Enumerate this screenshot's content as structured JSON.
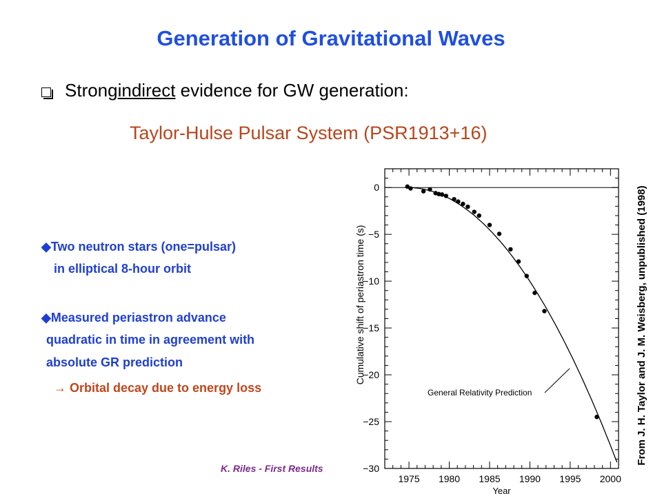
{
  "slide": {
    "title": "Generation of Gravitational Waves",
    "bullet_pre": "Strong ",
    "bullet_underlined": "indirect",
    "bullet_post": " evidence for GW generation:",
    "subtitle": "Taylor-Hulse Pulsar System (PSR1913+16)",
    "points": [
      "◆Two neutron stars (one=pulsar)",
      "in elliptical 8-hour orbit",
      "◆Measured periastron advance",
      "quadratic in time in agreement with",
      "absolute GR prediction",
      "→ Orbital decay due to energy loss"
    ],
    "footer": "K. Riles - First Results"
  },
  "chart_data": {
    "type": "scatter",
    "xlabel": "Year",
    "ylabel": "Cumulative shift of periastron time (s)",
    "xlim": [
      1972,
      2001
    ],
    "ylim": [
      -30,
      2
    ],
    "xticks": [
      1975,
      1980,
      1985,
      1990,
      1995,
      2000
    ],
    "xtick_labels": [
      "1975",
      "1980",
      "1985",
      "1990",
      "1995",
      "2000"
    ],
    "yticks": [
      0,
      -5,
      -10,
      -15,
      -20,
      -25,
      -30
    ],
    "ytick_labels": [
      "0",
      "−5",
      "−10",
      "−15",
      "−20",
      "−25",
      "−30"
    ],
    "grid": false,
    "points": [
      {
        "x": 1974.8,
        "y": 0.1
      },
      {
        "x": 1975.2,
        "y": -0.1
      },
      {
        "x": 1976.8,
        "y": -0.4
      },
      {
        "x": 1977.6,
        "y": -0.2
      },
      {
        "x": 1978.3,
        "y": -0.6
      },
      {
        "x": 1978.7,
        "y": -0.7
      },
      {
        "x": 1979.1,
        "y": -0.75
      },
      {
        "x": 1979.6,
        "y": -0.9
      },
      {
        "x": 1980.6,
        "y": -1.25
      },
      {
        "x": 1981.1,
        "y": -1.5
      },
      {
        "x": 1981.7,
        "y": -1.75
      },
      {
        "x": 1982.3,
        "y": -2.05
      },
      {
        "x": 1983.1,
        "y": -2.6
      },
      {
        "x": 1983.7,
        "y": -3.0
      },
      {
        "x": 1985.0,
        "y": -4.0
      },
      {
        "x": 1986.2,
        "y": -4.95
      },
      {
        "x": 1987.6,
        "y": -6.6
      },
      {
        "x": 1988.6,
        "y": -7.9
      },
      {
        "x": 1989.6,
        "y": -9.45
      },
      {
        "x": 1990.6,
        "y": -11.25
      },
      {
        "x": 1991.8,
        "y": -13.2
      },
      {
        "x": 1998.3,
        "y": -24.5
      }
    ],
    "curve": {
      "name": "General Relativity Prediction",
      "x0": 1974.8,
      "x1": 2001,
      "a": -0.0434
    },
    "annotation": "General Relativity Prediction",
    "side_label": "From J. H. Taylor and J. M. Weisberg, unpublished (1998)"
  }
}
